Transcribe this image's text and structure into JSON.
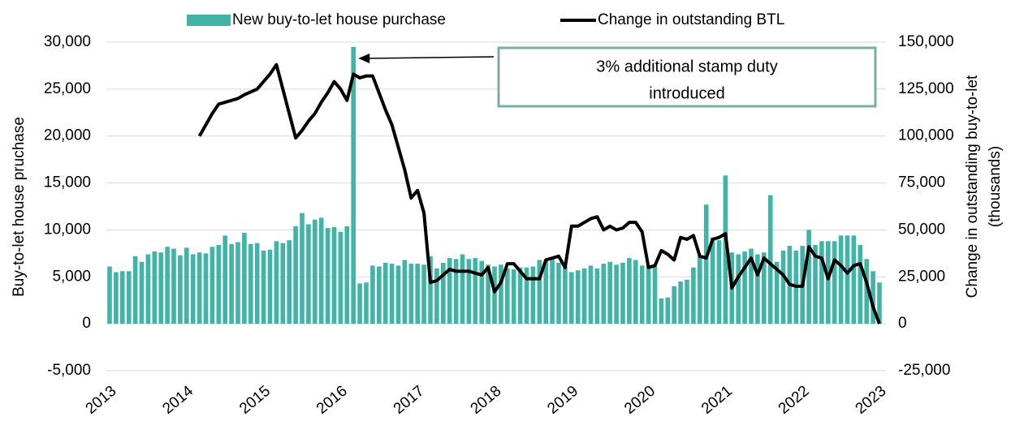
{
  "chart_data": {
    "type": "bar_line",
    "ylabel": "Buy-to-let house pruchase",
    "y2label": [
      "Change in outstanding buy-to-let",
      "(thousands)"
    ],
    "annotation": [
      "3% additional stamp duty",
      "introduced"
    ],
    "annotation_index": 38,
    "categories": [
      "2013",
      null,
      null,
      null,
      null,
      null,
      null,
      null,
      null,
      null,
      null,
      null,
      "2014",
      null,
      null,
      null,
      null,
      null,
      null,
      null,
      null,
      null,
      null,
      null,
      "2015",
      null,
      null,
      null,
      null,
      null,
      null,
      null,
      null,
      null,
      null,
      null,
      "2016",
      null,
      null,
      null,
      null,
      null,
      null,
      null,
      null,
      null,
      null,
      null,
      "2017",
      null,
      null,
      null,
      null,
      null,
      null,
      null,
      null,
      null,
      null,
      null,
      "2018",
      null,
      null,
      null,
      null,
      null,
      null,
      null,
      null,
      null,
      null,
      null,
      "2019",
      null,
      null,
      null,
      null,
      null,
      null,
      null,
      null,
      null,
      null,
      null,
      "2020",
      null,
      null,
      null,
      null,
      null,
      null,
      null,
      null,
      null,
      null,
      null,
      "2021",
      null,
      null,
      null,
      null,
      null,
      null,
      null,
      null,
      null,
      null,
      null,
      "2022",
      null,
      null,
      null,
      null,
      null,
      null,
      null,
      null,
      null,
      null,
      null,
      "2023"
    ],
    "series": [
      {
        "name": "New buy-to-let house purchase",
        "color": "#40b5a7",
        "type": "bar",
        "values": [
          6100,
          5500,
          5600,
          5600,
          7200,
          6600,
          7400,
          7700,
          7600,
          8200,
          8000,
          7300,
          8100,
          7400,
          7600,
          7500,
          8200,
          8400,
          9400,
          8500,
          8700,
          9700,
          8500,
          8600,
          7800,
          7900,
          8800,
          8600,
          8900,
          10400,
          11800,
          10600,
          11100,
          11300,
          10200,
          10300,
          9800,
          10400,
          29500,
          4300,
          4400,
          6200,
          6100,
          6500,
          6400,
          6200,
          6800,
          6400,
          6400,
          6300,
          7200,
          5900,
          6500,
          7000,
          6900,
          7400,
          6900,
          7000,
          6700,
          6300,
          6100,
          6300,
          5900,
          5800,
          6000,
          6000,
          6100,
          6800,
          6700,
          6900,
          6500,
          6100,
          5500,
          5700,
          5900,
          6200,
          5900,
          6400,
          6600,
          6300,
          6500,
          7000,
          6800,
          6200,
          6100,
          6200,
          2700,
          2800,
          4000,
          4500,
          4700,
          6000,
          7300,
          12700,
          9200,
          8900,
          15800,
          7600,
          7400,
          7700,
          8000,
          7400,
          7600,
          13700,
          6600,
          7800,
          8300,
          7800,
          8300,
          10000,
          8400,
          8800,
          8800,
          8800,
          9400,
          9400,
          9400,
          8400,
          6900,
          5600,
          4400
        ]
      },
      {
        "name": "Change in outstanding BTL",
        "color": "#000000",
        "type": "line",
        "axis": "y2",
        "values": [
          null,
          null,
          null,
          null,
          null,
          null,
          null,
          null,
          null,
          null,
          null,
          null,
          null,
          null,
          100000,
          106000,
          112000,
          117000,
          118000,
          119000,
          120000,
          122000,
          123500,
          125000,
          129000,
          133000,
          138000,
          125000,
          112000,
          99000,
          103000,
          108000,
          112000,
          118000,
          123000,
          129000,
          125000,
          119000,
          133000,
          131000,
          132000,
          132000,
          123000,
          114000,
          106000,
          94000,
          82000,
          67000,
          71000,
          59000,
          22000,
          23000,
          26000,
          29000,
          28000,
          28000,
          28000,
          27000,
          26000,
          30000,
          17000,
          22000,
          32000,
          32000,
          28000,
          24000,
          24000,
          24000,
          34000,
          35000,
          36000,
          30000,
          52000,
          52000,
          54000,
          56000,
          57000,
          50000,
          52000,
          50000,
          51000,
          54000,
          54000,
          49000,
          30000,
          31000,
          39000,
          37000,
          34000,
          46000,
          45000,
          47000,
          36000,
          35000,
          45000,
          46000,
          48000,
          19000,
          25000,
          30000,
          35000,
          26000,
          35000,
          32000,
          29000,
          26000,
          21000,
          20000,
          20000,
          41000,
          36000,
          35000,
          24000,
          34000,
          31000,
          27000,
          31000,
          32000,
          22000,
          9000,
          0
        ]
      }
    ],
    "ylim": [
      -5000,
      30000
    ],
    "yticks": [
      {
        "value": -5000,
        "label": "-5,000"
      },
      0,
      {
        "value": 5000,
        "label": "5,000"
      },
      {
        "value": 10000,
        "label": "10,000"
      },
      {
        "value": 15000,
        "label": "15,000"
      },
      {
        "value": 20000,
        "label": "20,000"
      },
      {
        "value": 25000,
        "label": "25,000"
      },
      {
        "value": 30000,
        "label": "30,000"
      }
    ],
    "y2lim": [
      -25000,
      150000
    ],
    "y2ticks": [
      {
        "value": -25000,
        "label": "-25,000"
      },
      0,
      {
        "value": 25000,
        "label": "25,000"
      },
      {
        "value": 50000,
        "label": "50,000"
      },
      {
        "value": 75000,
        "label": "75,000"
      },
      {
        "value": 100000,
        "label": "100,000"
      },
      {
        "value": 125000,
        "label": "125,000"
      },
      {
        "value": 150000,
        "label": "150,000"
      }
    ],
    "grid": true,
    "legend": "top"
  }
}
